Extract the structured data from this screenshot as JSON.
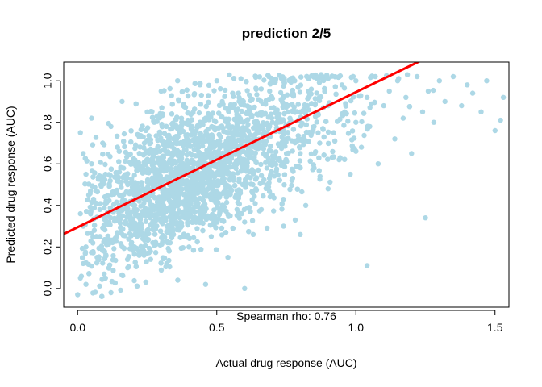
{
  "chart_data": {
    "type": "scatter",
    "title": "prediction 2/5",
    "xlabel": "Actual drug response (AUC)",
    "ylabel": "Predicted drug response (AUC)",
    "xlim": [
      -0.05,
      1.55
    ],
    "ylim": [
      -0.09,
      1.09
    ],
    "x_ticks": [
      0.0,
      0.5,
      1.0,
      1.5
    ],
    "x_tick_labels": [
      "0.0",
      "0.5",
      "1.0",
      "1.5"
    ],
    "y_ticks": [
      0.0,
      0.2,
      0.4,
      0.6,
      0.8,
      1.0
    ],
    "y_tick_labels": [
      "0.0",
      "0.2",
      "0.4",
      "0.6",
      "0.8",
      "1.0"
    ],
    "point_color": "#add8e6",
    "fit_line": {
      "color": "#ff0000",
      "intercept": 0.295,
      "slope": 0.65
    },
    "annotation": "Spearman rho: 0.76",
    "grid": false,
    "legend": "none",
    "points": [
      [
        0.0,
        -0.03
      ],
      [
        0.01,
        0.05
      ],
      [
        0.02,
        0.12
      ],
      [
        0.03,
        0.2
      ],
      [
        0.02,
        0.3
      ],
      [
        0.01,
        0.36
      ],
      [
        0.04,
        0.45
      ],
      [
        0.03,
        0.55
      ],
      [
        0.02,
        0.65
      ],
      [
        0.01,
        0.75
      ],
      [
        0.05,
        0.82
      ],
      [
        0.03,
        0.02
      ],
      [
        0.06,
        0.28
      ],
      [
        0.08,
        0.38
      ],
      [
        0.07,
        0.15
      ],
      [
        0.05,
        0.6
      ],
      [
        0.09,
        0.7
      ],
      [
        0.1,
        0.05
      ],
      [
        0.11,
        0.35
      ],
      [
        0.12,
        -0.02
      ],
      [
        0.1,
        0.55
      ],
      [
        0.12,
        0.78
      ],
      [
        0.14,
        0.25
      ],
      [
        0.15,
        0.4
      ],
      [
        0.16,
        0.9
      ],
      [
        0.18,
        0.1
      ],
      [
        0.18,
        0.5
      ],
      [
        0.2,
        0.3
      ],
      [
        0.2,
        0.62
      ],
      [
        0.22,
        0.18
      ],
      [
        0.22,
        0.45
      ],
      [
        0.24,
        0.7
      ],
      [
        0.25,
        0.35
      ],
      [
        0.25,
        0.85
      ],
      [
        0.27,
        0.22
      ],
      [
        0.28,
        0.55
      ],
      [
        0.3,
        0.42
      ],
      [
        0.3,
        0.95
      ],
      [
        0.32,
        0.12
      ],
      [
        0.32,
        0.65
      ],
      [
        0.34,
        0.5
      ],
      [
        0.35,
        0.78
      ],
      [
        0.36,
        0.3
      ],
      [
        0.38,
        0.6
      ],
      [
        0.38,
        0.88
      ],
      [
        0.4,
        0.2
      ],
      [
        0.4,
        0.45
      ],
      [
        0.42,
        0.72
      ],
      [
        0.44,
        0.35
      ],
      [
        0.44,
        0.98
      ],
      [
        0.45,
        0.58
      ],
      [
        0.46,
        0.82
      ],
      [
        0.48,
        0.25
      ],
      [
        0.48,
        0.5
      ],
      [
        0.5,
        0.65
      ],
      [
        0.5,
        1.0
      ],
      [
        0.52,
        0.4
      ],
      [
        0.52,
        0.9
      ],
      [
        0.54,
        0.15
      ],
      [
        0.55,
        0.55
      ],
      [
        0.55,
        0.75
      ],
      [
        0.57,
        0.45
      ],
      [
        0.58,
        0.92
      ],
      [
        0.6,
        0.32
      ],
      [
        0.6,
        0.62
      ],
      [
        0.61,
        0.85
      ],
      [
        0.63,
        0.5
      ],
      [
        0.64,
        1.02
      ],
      [
        0.65,
        0.7
      ],
      [
        0.66,
        0.38
      ],
      [
        0.68,
        0.58
      ],
      [
        0.69,
        0.95
      ],
      [
        0.7,
        0.45
      ],
      [
        0.7,
        0.8
      ],
      [
        0.72,
        0.62
      ],
      [
        0.74,
        0.3
      ],
      [
        0.74,
        0.88
      ],
      [
        0.75,
        0.72
      ],
      [
        0.77,
        0.52
      ],
      [
        0.78,
        1.0
      ],
      [
        0.8,
        0.65
      ],
      [
        0.8,
        0.85
      ],
      [
        0.82,
        0.4
      ],
      [
        0.83,
        0.95
      ],
      [
        0.85,
        0.58
      ],
      [
        0.85,
        0.78
      ],
      [
        0.87,
        0.7
      ],
      [
        0.88,
        1.02
      ],
      [
        0.9,
        0.48
      ],
      [
        0.9,
        0.88
      ],
      [
        0.92,
        0.75
      ],
      [
        0.94,
        0.62
      ],
      [
        0.95,
        0.98
      ],
      [
        0.96,
        0.85
      ],
      [
        0.98,
        0.55
      ],
      [
        1.0,
        0.8
      ],
      [
        1.0,
        1.0
      ],
      [
        1.02,
        0.68
      ],
      [
        1.04,
        0.92
      ],
      [
        1.04,
        0.11
      ],
      [
        1.05,
        0.78
      ],
      [
        1.07,
        1.02
      ],
      [
        1.08,
        0.6
      ],
      [
        1.1,
        0.88
      ],
      [
        1.12,
        0.95
      ],
      [
        1.14,
        0.72
      ],
      [
        1.15,
        1.0
      ],
      [
        1.17,
        0.82
      ],
      [
        1.18,
        0.92
      ],
      [
        1.2,
        0.65
      ],
      [
        1.22,
        1.02
      ],
      [
        1.24,
        0.85
      ],
      [
        1.25,
        0.34
      ],
      [
        1.26,
        0.95
      ],
      [
        1.28,
        0.8
      ],
      [
        1.3,
        1.0
      ],
      [
        1.32,
        0.9
      ],
      [
        1.35,
        1.02
      ],
      [
        1.38,
        0.88
      ],
      [
        1.4,
        0.98
      ],
      [
        1.42,
        0.94
      ],
      [
        1.45,
        0.85
      ],
      [
        1.47,
        1.0
      ],
      [
        1.5,
        0.76
      ],
      [
        1.53,
        0.92
      ],
      [
        1.52,
        0.81
      ],
      [
        0.6,
        0.0
      ],
      [
        0.36,
        0.04
      ],
      [
        0.46,
        0.02
      ],
      [
        0.8,
        0.26
      ]
    ]
  }
}
